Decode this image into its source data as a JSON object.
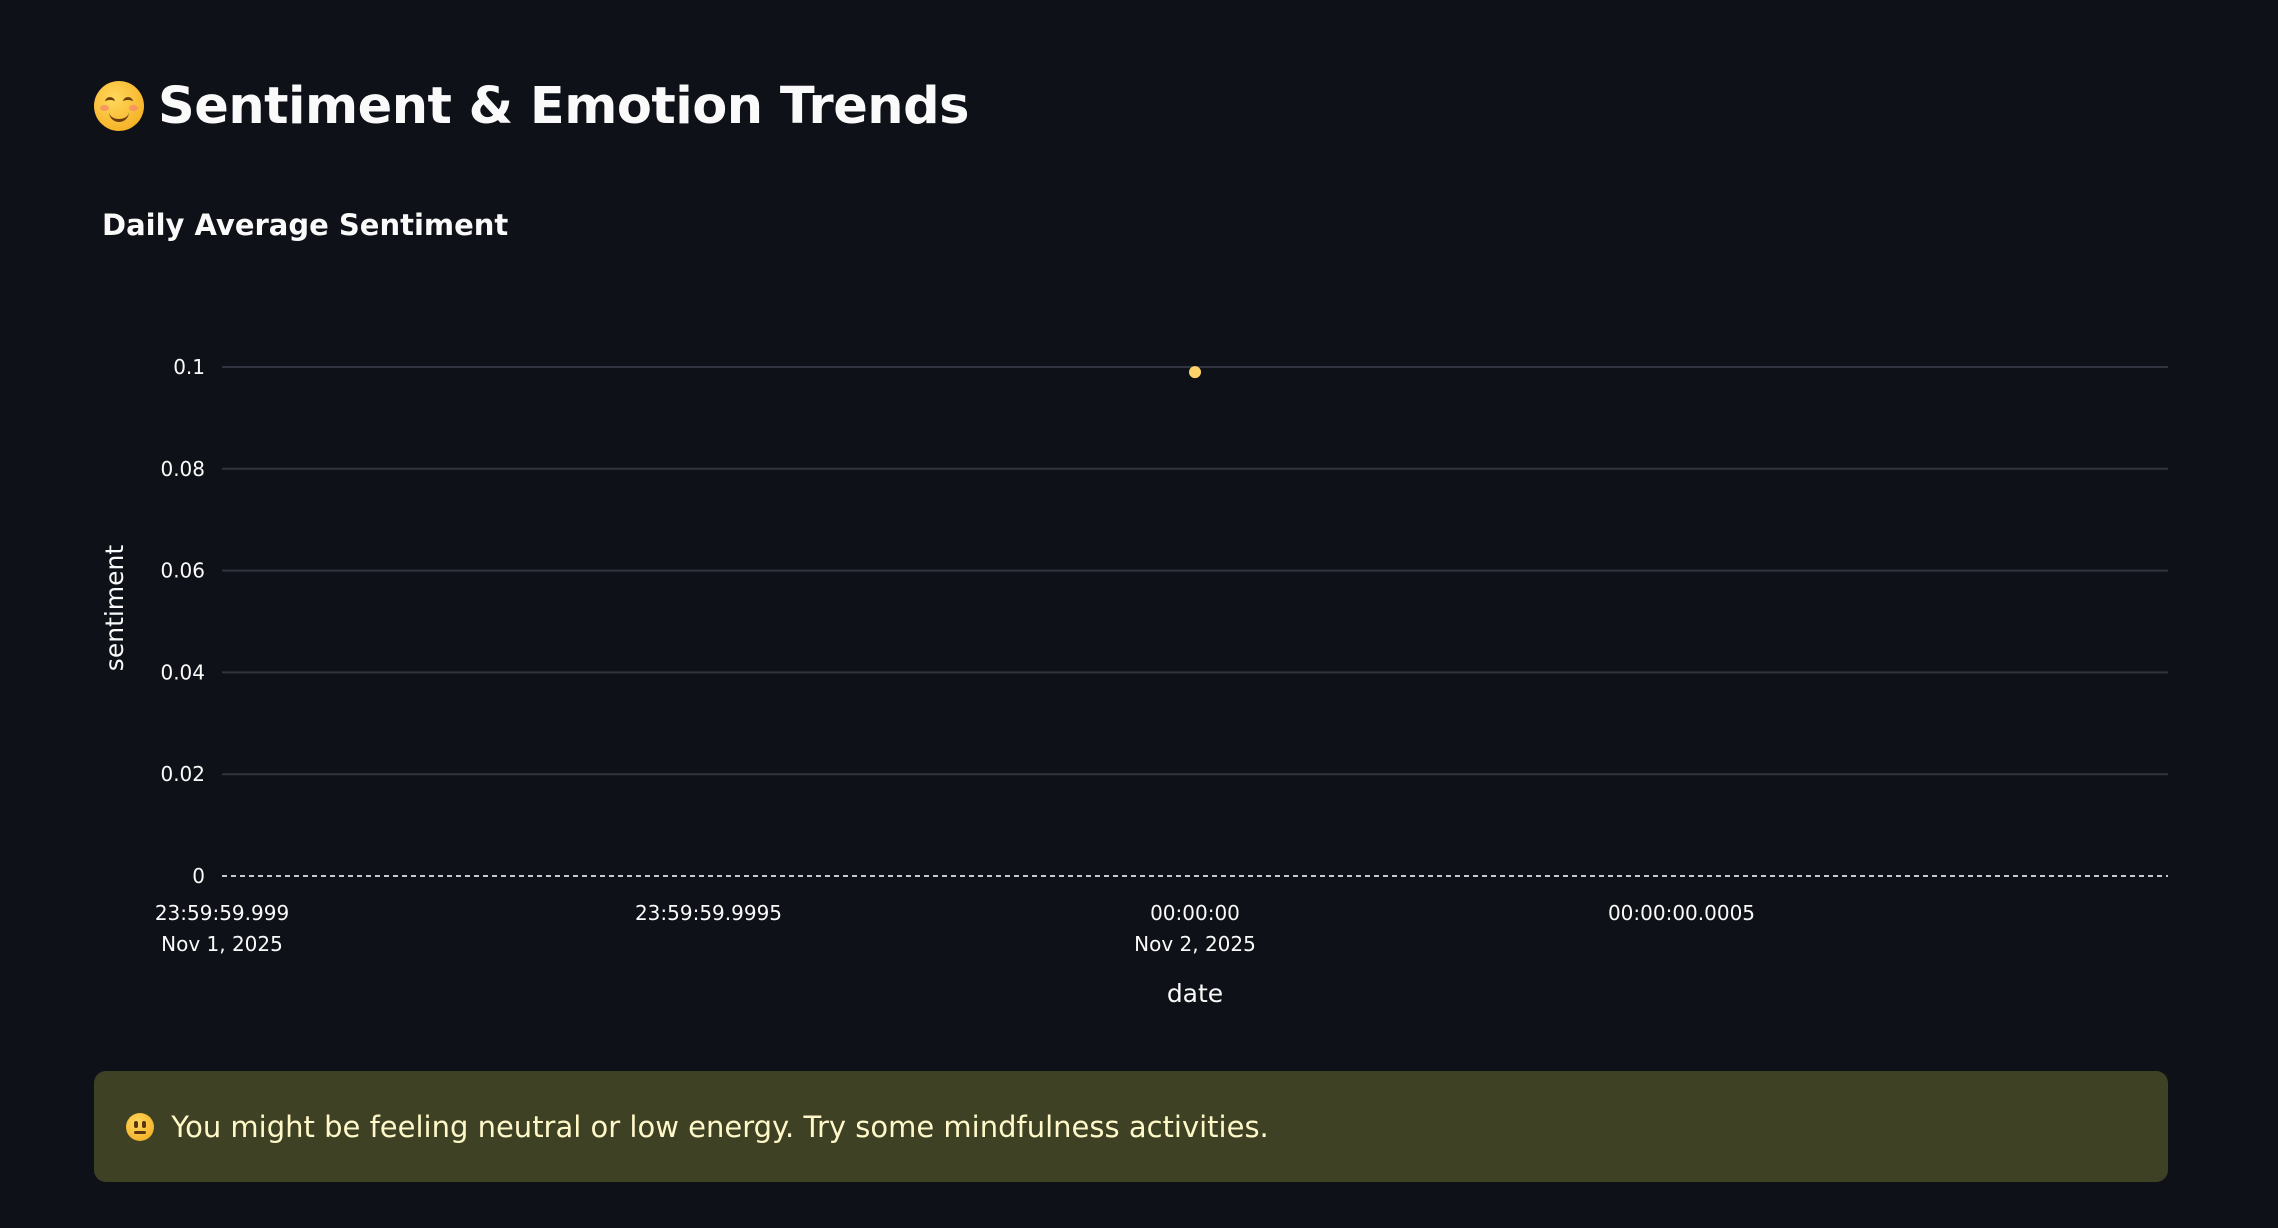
{
  "page": {
    "title": "Sentiment & Emotion Trends",
    "title_icon": "smiling-face-icon"
  },
  "chart_section": {
    "heading": "Daily Average Sentiment"
  },
  "chart_data": {
    "type": "scatter",
    "title": "Daily Average Sentiment",
    "xlabel": "date",
    "ylabel": "sentiment",
    "x": [
      "2025-11-02T00:00:00"
    ],
    "y": [
      0.099
    ],
    "ylim": [
      0,
      0.1
    ],
    "y_ticks": [
      "0",
      "0.02",
      "0.04",
      "0.06",
      "0.08",
      "0.1"
    ],
    "y_tick_values": [
      0,
      0.02,
      0.04,
      0.06,
      0.08,
      0.1
    ],
    "x_ticks": [
      {
        "line1": "23:59:59.999",
        "line2": "Nov 1, 2025"
      },
      {
        "line1": "23:59:59.9995",
        "line2": ""
      },
      {
        "line1": "00:00:00",
        "line2": "Nov 2, 2025"
      },
      {
        "line1": "00:00:00.0005",
        "line2": ""
      }
    ],
    "grid": true,
    "zero_line": "dashed",
    "point_color": "#ffd16a",
    "grid_color": "#31333f"
  },
  "alert": {
    "icon": "neutral-face-icon",
    "message": "You might be feeling neutral or low energy. Try some mindfulness activities.",
    "background": "#3e4124",
    "text_color": "#fff8c9"
  }
}
